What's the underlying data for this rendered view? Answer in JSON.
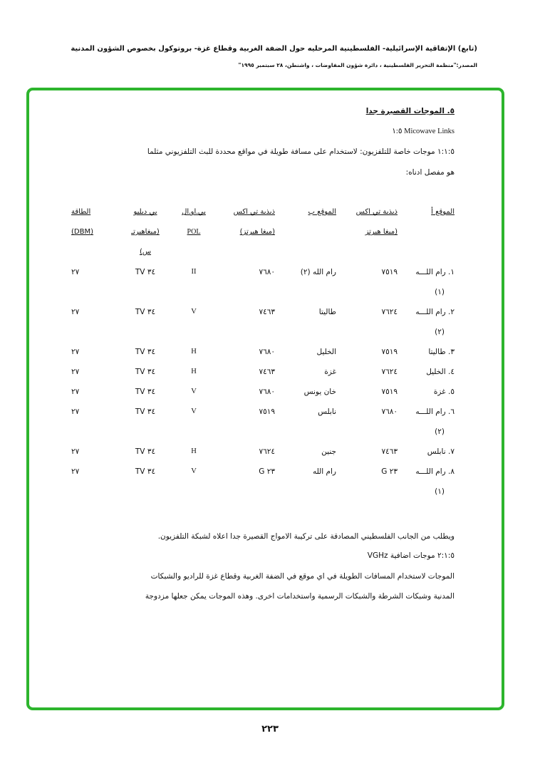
{
  "header": {
    "title": "(تابع) الإتفاقية الإسرائيلية- الفلسطينية المرحليه حول الضفة الغربية وقطاع غزة- بروتوكول بخصوص الشؤون المدنية",
    "source": "المصدر:\"منظمة التحرير الفلسطينية ، دائرة شؤون المفاوضات ، واشنطن، ٢٨ سبتمبر ١٩٩٥\""
  },
  "frame_color": "#2db52d",
  "body": {
    "section_heading": "٥. الموجات القصيرة جدا",
    "sub1": "Micowave Links ١:٥",
    "para1_line1": "١:١:٥ موجات خاصة للتلفزيون: لاستخدام على مسافة طويلة في مواقع محددة للبث التلفزيوني مثلما",
    "para1_line2": "هو مفصل ادناه:",
    "after_table": "ويطلب من الجانب الفلسطيني المصادقة على تركيبة الامواج القصيرة جدا اعلاه لشبكة التلفزيون.",
    "sub2": "٢:١:٥ موجات اضافية VGHz",
    "para2_line1": "الموجات لاستخدام المسافات الطويلة في اي موقع في الضفة الغربية وقطاع غزة للراديو والشبكات",
    "para2_line2": "المدنية وشبكات الشرطة والشبكات الرسمية واستخدامات اخرى. وهذه الموجات يمكن جعلها مزدوجة"
  },
  "table": {
    "headers": [
      {
        "l1": "الموقع أ",
        "l2": "",
        "l3": ""
      },
      {
        "l1": "ذبذبة تي اكس",
        "l2": "(ميغا هيرتز",
        "l3": ""
      },
      {
        "l1": "الموقع ب",
        "l2": "",
        "l3": ""
      },
      {
        "l1": "ذبذبة تي اكس",
        "l2": "(ميغا هيرتز)",
        "l3": ""
      },
      {
        "l1": "بي.او.ال",
        "l2": "POL",
        "l3": ""
      },
      {
        "l1": "بي دبليو",
        "l2": "(ميغاهيرتـ",
        "l3": "س)"
      },
      {
        "l1": "الطاقة",
        "l2": "(DBM)",
        "l3": ""
      }
    ],
    "rows": [
      {
        "site_a": "١. رام اللـــه",
        "site_a_cont": "(١)",
        "freq_a": "٧٥١٩",
        "site_b": "رام الله (٢)",
        "freq_b": "٧٦٨٠",
        "pol": "II",
        "bw": "٣٤ TV",
        "power": "٢٧"
      },
      {
        "site_a": "٢. رام اللـــه",
        "site_a_cont": "(٢)",
        "freq_a": "٧٦٢٤",
        "site_b": "طاليتا",
        "freq_b": "٧٤٦٣",
        "pol": "V",
        "bw": "٣٤ TV",
        "power": "٢٧"
      },
      {
        "site_a": "٣. طاليتا",
        "site_a_cont": "",
        "freq_a": "٧٥١٩",
        "site_b": "الخليل",
        "freq_b": "٧٦٨٠",
        "pol": "H",
        "bw": "٣٤ TV",
        "power": "٢٧"
      },
      {
        "site_a": "٤. الخليل",
        "site_a_cont": "",
        "freq_a": "٧٦٢٤",
        "site_b": "غزة",
        "freq_b": "٧٤٦٣",
        "pol": "H",
        "bw": "٣٤ TV",
        "power": "٢٧"
      },
      {
        "site_a": "٥. غزة",
        "site_a_cont": "",
        "freq_a": "٧٥١٩",
        "site_b": "خان يونس",
        "freq_b": "٧٦٨٠",
        "pol": "V",
        "bw": "٣٤ TV",
        "power": "٢٧"
      },
      {
        "site_a": "٦. رام اللـــه",
        "site_a_cont": "(٢)",
        "freq_a": "٧٦٨٠",
        "site_b": "نابلس",
        "freq_b": "٧٥١٩",
        "pol": "V",
        "bw": "٣٤ TV",
        "power": "٢٧"
      },
      {
        "site_a": "٧. نابلس",
        "site_a_cont": "",
        "freq_a": "٧٤٦٣",
        "site_b": "جنين",
        "freq_b": "٧٦٢٤",
        "pol": "H",
        "bw": "٣٤ TV",
        "power": "٢٧"
      },
      {
        "site_a": "٨. رام اللـــه",
        "site_a_cont": "(١)",
        "freq_a": "٢٣ G",
        "site_b": "رام الله",
        "freq_b": "٢٣ G",
        "pol": "V",
        "bw": "٣٤ TV",
        "power": "٢٧"
      }
    ]
  },
  "page_number": "٢٢٣"
}
